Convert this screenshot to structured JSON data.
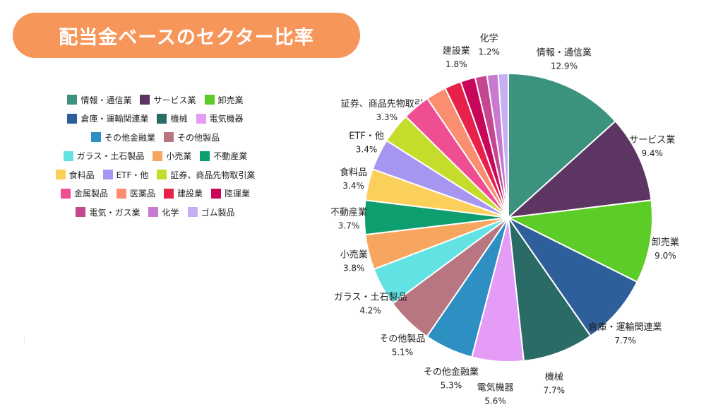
{
  "header": {
    "title": "配当金ベースのセクター比率"
  },
  "chart_data": {
    "type": "pie",
    "title": "配当金ベースのセクター比率",
    "legend_position": "left",
    "slices": [
      {
        "label": "情報・通信業",
        "value": 12.9,
        "value_label": "12.9%",
        "color": "#3a927f"
      },
      {
        "label": "サービス業",
        "value": 9.4,
        "value_label": "9.4%",
        "color": "#5c3562"
      },
      {
        "label": "卸売業",
        "value": 9.0,
        "value_label": "9.0%",
        "color": "#5ccc27"
      },
      {
        "label": "倉庫・運輸関連業",
        "value": 7.7,
        "value_label": "7.7%",
        "color": "#2f5f9a"
      },
      {
        "label": "機械",
        "value": 7.7,
        "value_label": "7.7%",
        "color": "#2b6b65"
      },
      {
        "label": "電気機器",
        "value": 5.6,
        "value_label": "5.6%",
        "color": "#e59cf7"
      },
      {
        "label": "その他金融業",
        "value": 5.3,
        "value_label": "5.3%",
        "color": "#2d8fc2"
      },
      {
        "label": "その他製品",
        "value": 5.1,
        "value_label": "5.1%",
        "color": "#b87681"
      },
      {
        "label": "ガラス・土石製品",
        "value": 4.2,
        "value_label": "4.2%",
        "color": "#62e2e3"
      },
      {
        "label": "小売業",
        "value": 3.8,
        "value_label": "3.8%",
        "color": "#f7a65f"
      },
      {
        "label": "不動産業",
        "value": 3.7,
        "value_label": "3.7%",
        "color": "#0f9e6f"
      },
      {
        "label": "食料品",
        "value": 3.4,
        "value_label": "3.4%",
        "color": "#fbd05a"
      },
      {
        "label": "ETF・他",
        "value": 3.4,
        "value_label": "3.4%",
        "color": "#a696ef"
      },
      {
        "label": "証券、商品先物取引業",
        "value": 3.3,
        "value_label": "3.3%",
        "color": "#c6dc2c"
      },
      {
        "label": "金属製品",
        "value": 3.0,
        "value_label": "",
        "color": "#ef4f92"
      },
      {
        "label": "医薬品",
        "value": 2.2,
        "value_label": "",
        "color": "#fb8d70"
      },
      {
        "label": "建設業",
        "value": 1.8,
        "value_label": "1.8%",
        "color": "#e8214b"
      },
      {
        "label": "陸運業",
        "value": 1.6,
        "value_label": "",
        "color": "#c7085a"
      },
      {
        "label": "電気・ガス業",
        "value": 1.3,
        "value_label": "",
        "color": "#c4478f"
      },
      {
        "label": "化学",
        "value": 1.2,
        "value_label": "1.2%",
        "color": "#c77ad0"
      },
      {
        "label": "ゴム製品",
        "value": 1.1,
        "value_label": "",
        "color": "#c6aef2"
      }
    ]
  },
  "legend_rows": [
    [
      0,
      1,
      2
    ],
    [
      3,
      4,
      5
    ],
    [
      6,
      7
    ],
    [
      8,
      9,
      10
    ],
    [
      11,
      12,
      13
    ],
    [
      14,
      15,
      16,
      17
    ],
    [
      18,
      19,
      20
    ]
  ]
}
